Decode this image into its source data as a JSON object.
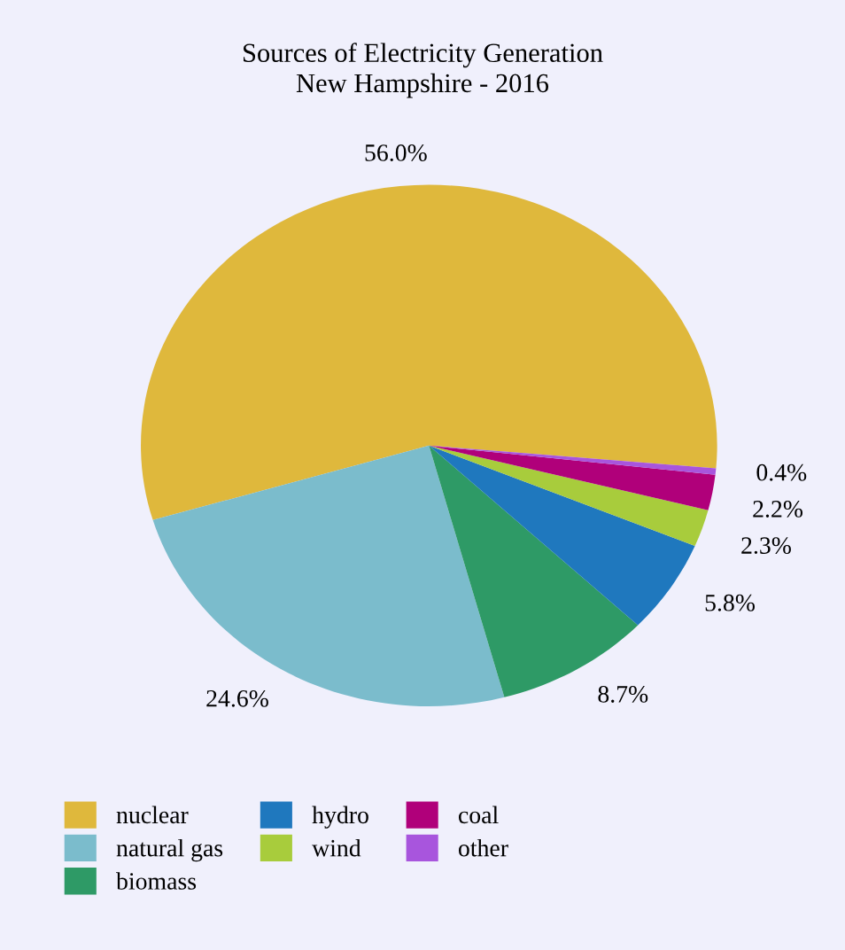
{
  "chart_data": {
    "type": "pie",
    "title": "Sources of Electricity Generation\nNew Hampshire - 2016",
    "categories": [
      "nuclear",
      "natural gas",
      "biomass",
      "hydro",
      "wind",
      "coal",
      "other"
    ],
    "values": [
      56.0,
      24.6,
      8.7,
      5.8,
      2.3,
      2.2,
      0.4
    ],
    "value_labels": [
      "56.0%",
      "24.6%",
      "8.7%",
      "5.8%",
      "2.3%",
      "2.2%",
      "0.4%"
    ],
    "colors": [
      "#dfb83c",
      "#7bbccc",
      "#2e9a66",
      "#1f78be",
      "#a8cc3c",
      "#b0007a",
      "#a855dd"
    ],
    "legend": "bottom"
  }
}
